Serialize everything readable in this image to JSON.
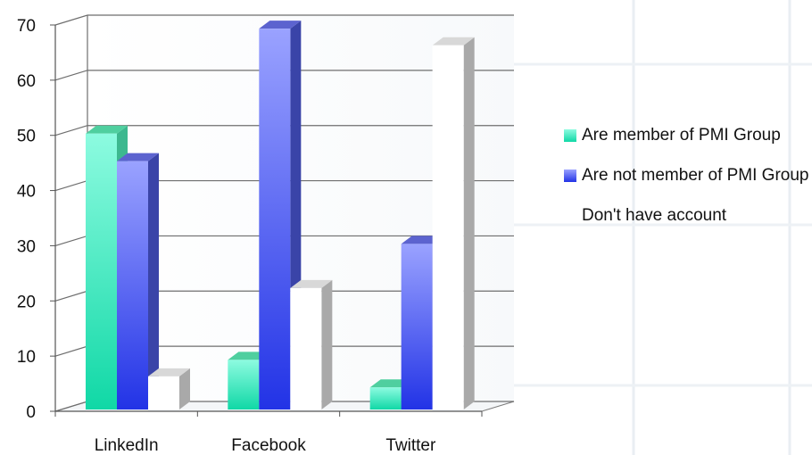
{
  "chart_data": {
    "type": "bar",
    "categories": [
      "LinkedIn",
      "Facebook",
      "Twitter"
    ],
    "series": [
      {
        "name": "Are member of PMI Group",
        "values": [
          50,
          9,
          4
        ],
        "color": "#2de0b0"
      },
      {
        "name": "Are not member of PMI Group",
        "values": [
          45,
          69,
          30
        ],
        "color": "#4c55ec"
      },
      {
        "name": "Don't have account",
        "values": [
          6,
          22,
          66
        ],
        "color": "#ffffff"
      }
    ],
    "ylim": [
      0,
      70
    ],
    "yticks": [
      "0",
      "10",
      "20",
      "30",
      "40",
      "50",
      "60",
      "70"
    ],
    "grid": true,
    "legend": "right",
    "style": "3d-clustered-column"
  }
}
